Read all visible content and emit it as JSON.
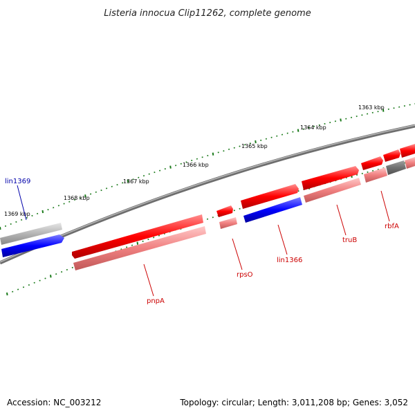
{
  "title": "Listeria innocua Clip11262, complete genome",
  "footer": {
    "accession": "Accession: NC_003212",
    "topology": "Topology: circular; Length: 3,011,208 bp; Genes: 3,052"
  },
  "scale": {
    "ticks": [
      "1363 kbp",
      "1364 kbp",
      "1365 kbp",
      "1366 kbp",
      "1367 kbp",
      "1368 kbp",
      "1369 kbp"
    ]
  },
  "genes": {
    "lin1369": "lin1369",
    "pnpA": "pnpA",
    "rpsO": "rpsO",
    "lin1366": "lin1366",
    "truB": "truB",
    "rbfA": "rbfA"
  },
  "colors": {
    "forward": "#ff0000",
    "forward_light": "#f08080",
    "reverse": "#0000ff",
    "other": "#a0a0a0",
    "backbone": "#808080",
    "ticks": "#1a7a1a",
    "label_red": "#cc0000",
    "label_blue": "#0000aa"
  }
}
